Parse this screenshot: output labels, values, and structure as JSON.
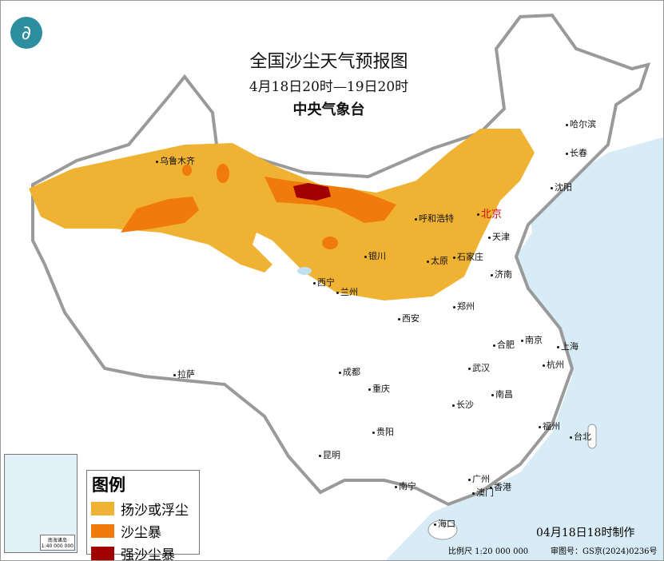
{
  "header": {
    "title": "全国沙尘天气预报图",
    "period": "4月18日20时—19日20时",
    "issuer": "中央气象台"
  },
  "colors": {
    "floating_dust": "#efb232",
    "sandstorm": "#f07a0a",
    "severe_sandstorm": "#a00000",
    "sea": "#d8ecf7",
    "border": "#9a9a9a"
  },
  "logo_icon": "cma-dragon-logo",
  "legend": {
    "title": "图例",
    "items": [
      {
        "label": "扬沙或浮尘",
        "color": "#efb232"
      },
      {
        "label": "沙尘暴",
        "color": "#f07a0a"
      },
      {
        "label": "强沙尘暴",
        "color": "#a00000"
      }
    ]
  },
  "cities": [
    "乌鲁木齐",
    "呼和浩特",
    "北京",
    "天津",
    "银川",
    "太原",
    "石家庄",
    "济南",
    "西宁",
    "兰州",
    "郑州",
    "西安",
    "哈尔滨",
    "长春",
    "沈阳",
    "合肥",
    "南京",
    "上海",
    "杭州",
    "武汉",
    "成都",
    "重庆",
    "拉萨",
    "长沙",
    "南昌",
    "贵阳",
    "福州",
    "台北",
    "昆明",
    "南宁",
    "广州",
    "澳门",
    "香港",
    "海口"
  ],
  "inset": {
    "caption": "南海诸岛",
    "scale": "1:40 000 000"
  },
  "footer": {
    "made": "04月18日18时制作",
    "scale": "比例尺 1:20 000 000",
    "review": "审图号：GS京(2024)0236号"
  }
}
